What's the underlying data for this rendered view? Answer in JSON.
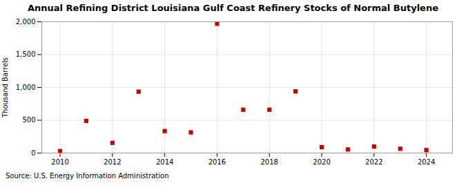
{
  "chart_data": {
    "type": "scatter",
    "title": "Annual Refining District Louisiana Gulf Coast Refinery Stocks of Normal Butylene",
    "ylabel": "Thousand Barrels",
    "caption": "Source: U.S. Energy Information Administration",
    "x": [
      2010,
      2011,
      2012,
      2013,
      2014,
      2015,
      2016,
      2017,
      2018,
      2019,
      2020,
      2021,
      2022,
      2023,
      2024
    ],
    "values": [
      30,
      490,
      155,
      935,
      335,
      315,
      1970,
      660,
      660,
      940,
      90,
      55,
      100,
      65,
      45
    ],
    "color": "#cc0000",
    "marker": "square",
    "xlim": [
      2009.3,
      2025.0
    ],
    "xticks": [
      2010,
      2012,
      2014,
      2016,
      2018,
      2020,
      2022,
      2024
    ],
    "ylim": [
      0,
      2000
    ],
    "yticks": [
      0,
      500,
      {
        "value": 1000,
        "label": "1,000"
      },
      {
        "value": 1500,
        "label": "1,500"
      },
      {
        "value": 2000,
        "label": "2,000"
      }
    ],
    "grid": true
  }
}
